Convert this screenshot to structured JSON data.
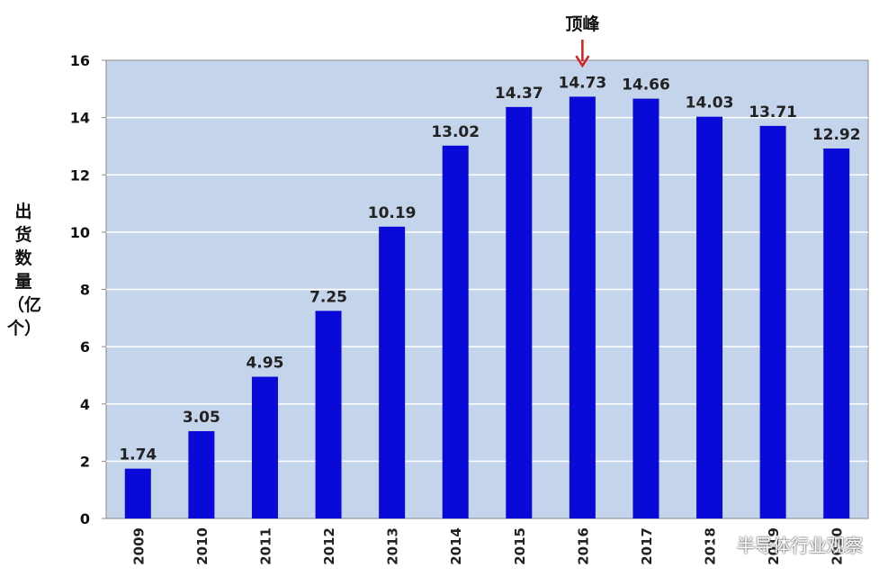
{
  "chart_data": {
    "type": "bar",
    "categories": [
      "2009",
      "2010",
      "2011",
      "2012",
      "2013",
      "2014",
      "2015",
      "2016",
      "2017",
      "2018",
      "2019",
      "2020"
    ],
    "values": [
      1.74,
      3.05,
      4.95,
      7.25,
      10.19,
      13.02,
      14.37,
      14.73,
      14.66,
      14.03,
      13.71,
      12.92
    ],
    "value_labels": [
      "1.74",
      "3.05",
      "4.95",
      "7.25",
      "10.19",
      "13.02",
      "14.37",
      "14.73",
      "14.66",
      "14.03",
      "13.71",
      "12.92"
    ],
    "ylabel": "出货数量（亿个）",
    "ylim": [
      0,
      16
    ],
    "yticks": [
      "0",
      "2",
      "4",
      "6",
      "8",
      "10",
      "12",
      "14",
      "16"
    ],
    "grid": true,
    "annotation": {
      "text": "顶峰",
      "category": "2016"
    },
    "colors": {
      "bar": "#0a0ad8",
      "plot_bg": "#c4d4ea",
      "grid": "#ffffff",
      "arrow": "#d42020",
      "axis": "#8a8a8a"
    }
  },
  "watermark": {
    "text": "半导体行业观察"
  }
}
